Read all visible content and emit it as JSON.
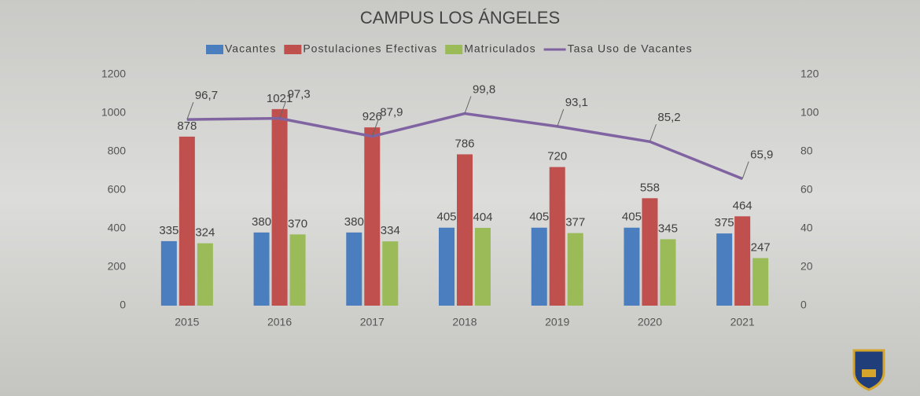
{
  "chart_data": {
    "type": "bar",
    "title": "CAMPUS LOS ÁNGELES",
    "categories": [
      "2015",
      "2016",
      "2017",
      "2018",
      "2019",
      "2020",
      "2021"
    ],
    "series": [
      {
        "name": "Vacantes",
        "color": "#4a7ebf",
        "values": [
          335,
          380,
          380,
          405,
          405,
          405,
          375
        ]
      },
      {
        "name": "Postulaciones Efectivas",
        "color": "#c0504d",
        "values": [
          878,
          1021,
          926,
          786,
          720,
          558,
          464
        ]
      },
      {
        "name": "Matriculados",
        "color": "#9bbb59",
        "values": [
          324,
          370,
          334,
          404,
          377,
          345,
          247
        ]
      },
      {
        "name": "Tasa Uso de Vacantes",
        "type": "line",
        "axis": "y2",
        "color": "#8064a2",
        "values": [
          96.7,
          97.3,
          87.9,
          99.8,
          93.1,
          85.2,
          65.9
        ],
        "value_labels": [
          "96,7",
          "97,3",
          "87,9",
          "99,8",
          "93,1",
          "85,2",
          "65,9"
        ]
      }
    ],
    "ylim": [
      0,
      1200
    ],
    "yticks": [
      0,
      200,
      400,
      600,
      800,
      1000,
      1200
    ],
    "y2lim": [
      0,
      120
    ],
    "y2ticks": [
      0,
      20,
      40,
      60,
      80,
      100,
      120
    ],
    "legend": "top"
  }
}
